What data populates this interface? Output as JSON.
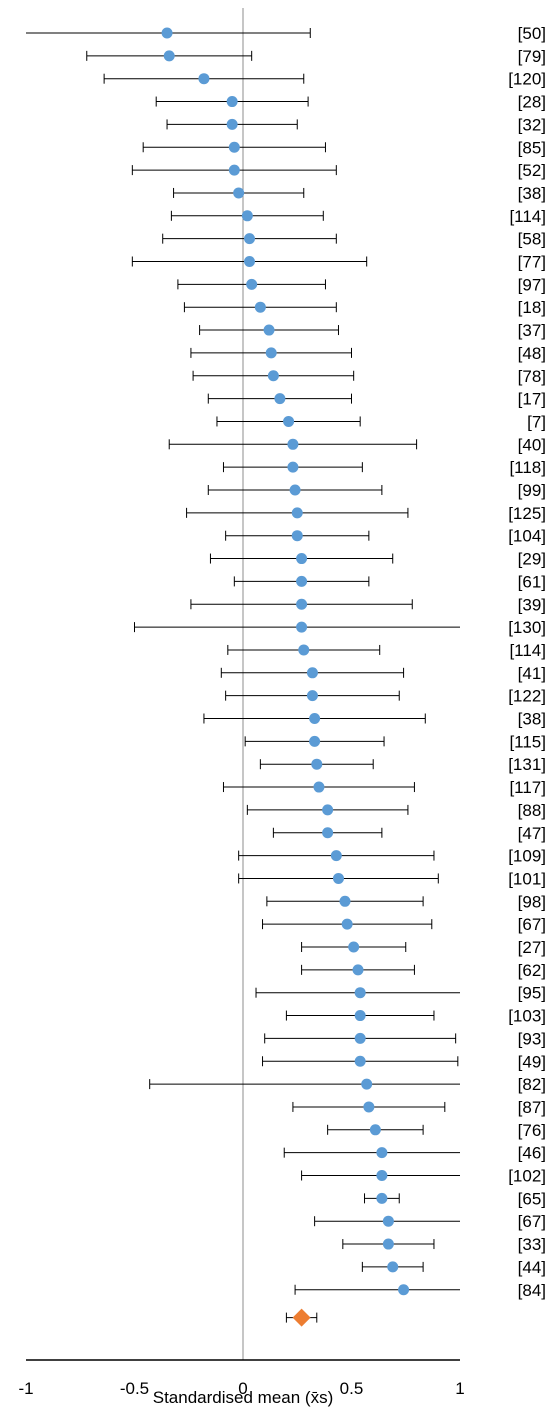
{
  "chart_data": {
    "type": "forest",
    "xlabel": "Standardised mean (x̄s)",
    "xlim": [
      -1,
      1
    ],
    "xticks": [
      "-1",
      "-0.5",
      "0",
      "0.5",
      "1"
    ],
    "colors": {
      "study": "#5b9bd5",
      "summary": "#ed7d31",
      "line": "#000000"
    },
    "studies": [
      {
        "ref": "[50]",
        "mean": -0.35,
        "lo": -1.0,
        "hi": 0.31
      },
      {
        "ref": "[79]",
        "mean": -0.34,
        "lo": -0.72,
        "hi": 0.04
      },
      {
        "ref": "[120]",
        "mean": -0.18,
        "lo": -0.64,
        "hi": 0.28
      },
      {
        "ref": "[28]",
        "mean": -0.05,
        "lo": -0.4,
        "hi": 0.3
      },
      {
        "ref": "[32]",
        "mean": -0.05,
        "lo": -0.35,
        "hi": 0.25
      },
      {
        "ref": "[85]",
        "mean": -0.04,
        "lo": -0.46,
        "hi": 0.38
      },
      {
        "ref": "[52]",
        "mean": -0.04,
        "lo": -0.51,
        "hi": 0.43
      },
      {
        "ref": "[38]",
        "mean": -0.02,
        "lo": -0.32,
        "hi": 0.28
      },
      {
        "ref": "[114]",
        "mean": 0.02,
        "lo": -0.33,
        "hi": 0.37
      },
      {
        "ref": "[58]",
        "mean": 0.03,
        "lo": -0.37,
        "hi": 0.43
      },
      {
        "ref": "[77]",
        "mean": 0.03,
        "lo": -0.51,
        "hi": 0.57
      },
      {
        "ref": "[97]",
        "mean": 0.04,
        "lo": -0.3,
        "hi": 0.38
      },
      {
        "ref": "[18]",
        "mean": 0.08,
        "lo": -0.27,
        "hi": 0.43
      },
      {
        "ref": "[37]",
        "mean": 0.12,
        "lo": -0.2,
        "hi": 0.44
      },
      {
        "ref": "[48]",
        "mean": 0.13,
        "lo": -0.24,
        "hi": 0.5
      },
      {
        "ref": "[78]",
        "mean": 0.14,
        "lo": -0.23,
        "hi": 0.51
      },
      {
        "ref": "[17]",
        "mean": 0.17,
        "lo": -0.16,
        "hi": 0.5
      },
      {
        "ref": "[7]",
        "mean": 0.21,
        "lo": -0.12,
        "hi": 0.54
      },
      {
        "ref": "[40]",
        "mean": 0.23,
        "lo": -0.34,
        "hi": 0.8
      },
      {
        "ref": "[118]",
        "mean": 0.23,
        "lo": -0.09,
        "hi": 0.55
      },
      {
        "ref": "[99]",
        "mean": 0.24,
        "lo": -0.16,
        "hi": 0.64
      },
      {
        "ref": "[125]",
        "mean": 0.25,
        "lo": -0.26,
        "hi": 0.76
      },
      {
        "ref": "[104]",
        "mean": 0.25,
        "lo": -0.08,
        "hi": 0.58
      },
      {
        "ref": "[29]",
        "mean": 0.27,
        "lo": -0.15,
        "hi": 0.69
      },
      {
        "ref": "[61]",
        "mean": 0.27,
        "lo": -0.04,
        "hi": 0.58
      },
      {
        "ref": "[39]",
        "mean": 0.27,
        "lo": -0.24,
        "hi": 0.78
      },
      {
        "ref": "[130]",
        "mean": 0.27,
        "lo": -0.5,
        "hi": 1.0
      },
      {
        "ref": "[114]",
        "mean": 0.28,
        "lo": -0.07,
        "hi": 0.63
      },
      {
        "ref": "[41]",
        "mean": 0.32,
        "lo": -0.1,
        "hi": 0.74
      },
      {
        "ref": "[122]",
        "mean": 0.32,
        "lo": -0.08,
        "hi": 0.72
      },
      {
        "ref": "[38]",
        "mean": 0.33,
        "lo": -0.18,
        "hi": 0.84
      },
      {
        "ref": "[115]",
        "mean": 0.33,
        "lo": 0.01,
        "hi": 0.65
      },
      {
        "ref": "[131]",
        "mean": 0.34,
        "lo": 0.08,
        "hi": 0.6
      },
      {
        "ref": "[117]",
        "mean": 0.35,
        "lo": -0.09,
        "hi": 0.79
      },
      {
        "ref": "[88]",
        "mean": 0.39,
        "lo": 0.02,
        "hi": 0.76
      },
      {
        "ref": "[47]",
        "mean": 0.39,
        "lo": 0.14,
        "hi": 0.64
      },
      {
        "ref": "[109]",
        "mean": 0.43,
        "lo": -0.02,
        "hi": 0.88
      },
      {
        "ref": "[101]",
        "mean": 0.44,
        "lo": -0.02,
        "hi": 0.9
      },
      {
        "ref": "[98]",
        "mean": 0.47,
        "lo": 0.11,
        "hi": 0.83
      },
      {
        "ref": "[67]",
        "mean": 0.48,
        "lo": 0.09,
        "hi": 0.87
      },
      {
        "ref": "[27]",
        "mean": 0.51,
        "lo": 0.27,
        "hi": 0.75
      },
      {
        "ref": "[62]",
        "mean": 0.53,
        "lo": 0.27,
        "hi": 0.79
      },
      {
        "ref": "[95]",
        "mean": 0.54,
        "lo": 0.06,
        "hi": 1.0
      },
      {
        "ref": "[103]",
        "mean": 0.54,
        "lo": 0.2,
        "hi": 0.88
      },
      {
        "ref": "[93]",
        "mean": 0.54,
        "lo": 0.1,
        "hi": 0.98
      },
      {
        "ref": "[49]",
        "mean": 0.54,
        "lo": 0.09,
        "hi": 0.99
      },
      {
        "ref": "[82]",
        "mean": 0.57,
        "lo": -0.43,
        "hi": 1.0
      },
      {
        "ref": "[87]",
        "mean": 0.58,
        "lo": 0.23,
        "hi": 0.93
      },
      {
        "ref": "[76]",
        "mean": 0.61,
        "lo": 0.39,
        "hi": 0.83
      },
      {
        "ref": "[46]",
        "mean": 0.64,
        "lo": 0.19,
        "hi": 1.0
      },
      {
        "ref": "[102]",
        "mean": 0.64,
        "lo": 0.27,
        "hi": 1.0
      },
      {
        "ref": "[65]",
        "mean": 0.64,
        "lo": 0.56,
        "hi": 0.72
      },
      {
        "ref": "[67]",
        "mean": 0.67,
        "lo": 0.33,
        "hi": 1.0
      },
      {
        "ref": "[33]",
        "mean": 0.67,
        "lo": 0.46,
        "hi": 0.88
      },
      {
        "ref": "[44]",
        "mean": 0.69,
        "lo": 0.55,
        "hi": 0.83
      },
      {
        "ref": "[84]",
        "mean": 0.74,
        "lo": 0.24,
        "hi": 1.0
      }
    ],
    "summary": {
      "mean": 0.27,
      "lo": 0.2,
      "hi": 0.34
    }
  }
}
